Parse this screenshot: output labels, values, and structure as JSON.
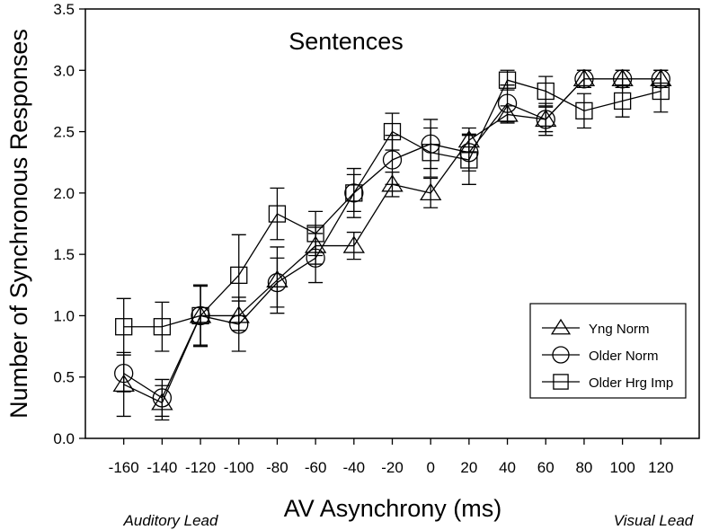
{
  "chart_data": {
    "type": "line",
    "title": "Sentences",
    "xlabel": "AV Asynchrony (ms)",
    "ylabel": "Number of Synchronous Responses",
    "annotations": [
      "Auditory Lead",
      "Visual Lead"
    ],
    "x": [
      -160,
      -140,
      -120,
      -100,
      -80,
      -60,
      -40,
      -20,
      0,
      20,
      40,
      60,
      80,
      100,
      120
    ],
    "xlim": [
      -180,
      140
    ],
    "ylim": [
      0,
      3.5
    ],
    "yticks": [
      "0.0",
      "0.5",
      "1.0",
      "1.5",
      "2.0",
      "2.5",
      "3.0",
      "3.5"
    ],
    "legend_placement": "lower-right",
    "series": [
      {
        "name": "Yng Norm",
        "marker": "triangle",
        "values": [
          0.44,
          0.29,
          1.0,
          1.0,
          1.29,
          1.57,
          1.57,
          2.07,
          2.0,
          2.43,
          2.64,
          2.6,
          2.93,
          2.93,
          2.93
        ],
        "errors": [
          0.26,
          0.14,
          0.25,
          0.12,
          0.27,
          0.15,
          0.11,
          0.1,
          0.12,
          0.1,
          0.07,
          0.1,
          0.07,
          0.07,
          0.07
        ]
      },
      {
        "name": "Older Norm",
        "marker": "circle",
        "values": [
          0.53,
          0.33,
          1.0,
          0.93,
          1.27,
          1.47,
          2.0,
          2.27,
          2.4,
          2.33,
          2.73,
          2.6,
          2.93,
          2.93,
          2.93
        ],
        "errors": [
          0.15,
          0.15,
          0.25,
          0.22,
          0.2,
          0.2,
          0.2,
          0.2,
          0.2,
          0.15,
          0.15,
          0.13,
          0.07,
          0.07,
          0.07
        ]
      },
      {
        "name": "Older Hrg Imp",
        "marker": "square",
        "values": [
          0.91,
          0.91,
          1.0,
          1.33,
          1.83,
          1.67,
          2.0,
          2.5,
          2.33,
          2.27,
          2.92,
          2.83,
          2.67,
          2.75,
          2.83
        ],
        "errors": [
          0.23,
          0.2,
          0.24,
          0.33,
          0.21,
          0.18,
          0.15,
          0.15,
          0.2,
          0.2,
          0.08,
          0.12,
          0.14,
          0.13,
          0.17
        ]
      }
    ]
  }
}
